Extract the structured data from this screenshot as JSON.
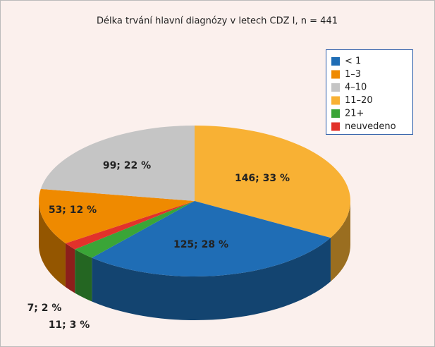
{
  "chart_data": {
    "type": "pie3d",
    "title": "Délka trvání hlavní diagnózy v letech CDZ I, n = 441",
    "categories": [
      "< 1",
      "1–3",
      "4–10",
      "11–20",
      "21+",
      "neuvedeno"
    ],
    "values": [
      125,
      53,
      99,
      146,
      11,
      7
    ],
    "value_labels": [
      "125; 28 %",
      "53; 12 %",
      "99; 22 %",
      "146; 33 %",
      "11; 3 %",
      "7; 2 %"
    ],
    "colors": [
      "#1f6db5",
      "#ef8a00",
      "#c5c5c5",
      "#f8b134",
      "#3aa537",
      "#e2322b"
    ],
    "legend": "top-right"
  }
}
